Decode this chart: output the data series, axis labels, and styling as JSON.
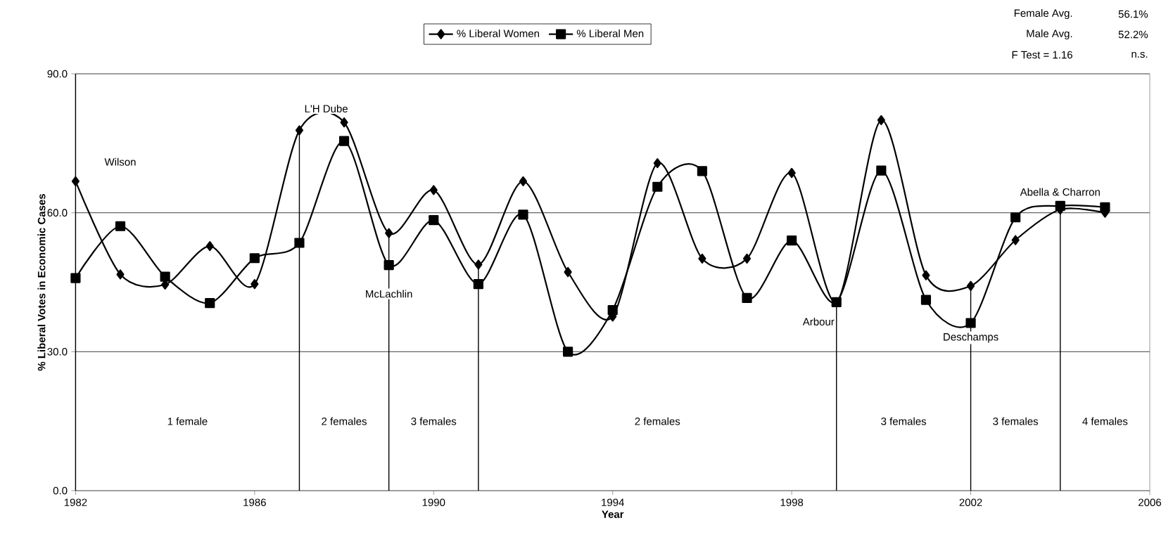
{
  "chart_data": {
    "type": "line",
    "xlabel": "Year",
    "ylabel": "% Liberal Votes in Economic Cases",
    "x": [
      1982,
      1983,
      1984,
      1985,
      1986,
      1987,
      1988,
      1989,
      1990,
      1991,
      1992,
      1993,
      1994,
      1995,
      1996,
      1997,
      1998,
      1999,
      2000,
      2001,
      2002,
      2003,
      2004,
      2005
    ],
    "series": [
      {
        "name": "% Liberal Women",
        "color": "#000000",
        "marker": "diamond",
        "values": [
          66.8,
          46.7,
          44.5,
          52.8,
          44.6,
          77.8,
          79.5,
          55.6,
          64.9,
          48.8,
          66.8,
          47.2,
          37.6,
          70.7,
          50.1,
          50.1,
          68.6,
          40.7,
          80.0,
          46.5,
          44.2,
          54.1,
          60.7,
          60.0
        ]
      },
      {
        "name": "% Liberal Men",
        "color": "#000000",
        "marker": "square",
        "values": [
          45.9,
          57.1,
          46.2,
          40.5,
          50.2,
          53.5,
          75.5,
          48.7,
          58.4,
          44.6,
          59.6,
          30.0,
          39.0,
          65.6,
          69.0,
          41.6,
          54.0,
          40.7,
          69.1,
          41.2,
          36.2,
          59.0,
          61.5,
          61.2
        ]
      }
    ],
    "xlim": [
      1982,
      2006
    ],
    "xticks": [
      1982,
      1986,
      1990,
      1994,
      1998,
      2002,
      2006
    ],
    "ylim": [
      0,
      90
    ],
    "yticks": [
      {
        "value": 0,
        "label": "0.0"
      },
      {
        "value": 30,
        "label": "30.0"
      },
      {
        "value": 60,
        "label": "60.0"
      },
      {
        "value": 90,
        "label": "90.0"
      }
    ],
    "grid": "y",
    "legend": "top",
    "line_style": "solid",
    "ref_lines": [
      {
        "axis": "x",
        "value": 1987,
        "color": "#000000"
      },
      {
        "axis": "x",
        "value": 1989,
        "color": "#000000"
      },
      {
        "axis": "x",
        "value": 1991,
        "color": "#000000"
      },
      {
        "axis": "x",
        "value": 1999,
        "color": "#000000"
      },
      {
        "axis": "x",
        "value": 2002,
        "color": "#000000"
      },
      {
        "axis": "x",
        "value": 2004,
        "color": "#000000"
      }
    ],
    "annotations": [
      "Female Avg.",
      "56.1%",
      "Male Avg.",
      "52.2%",
      "F Test = 1.16",
      "n.s.",
      "Wilson",
      "L'H Dube",
      "McLachlin",
      "Arbour",
      "Deschamps",
      "Abella & Charron",
      "1 female",
      "2 females",
      "3 females",
      "2 females",
      "3 females",
      "3 females",
      "4 females"
    ]
  }
}
